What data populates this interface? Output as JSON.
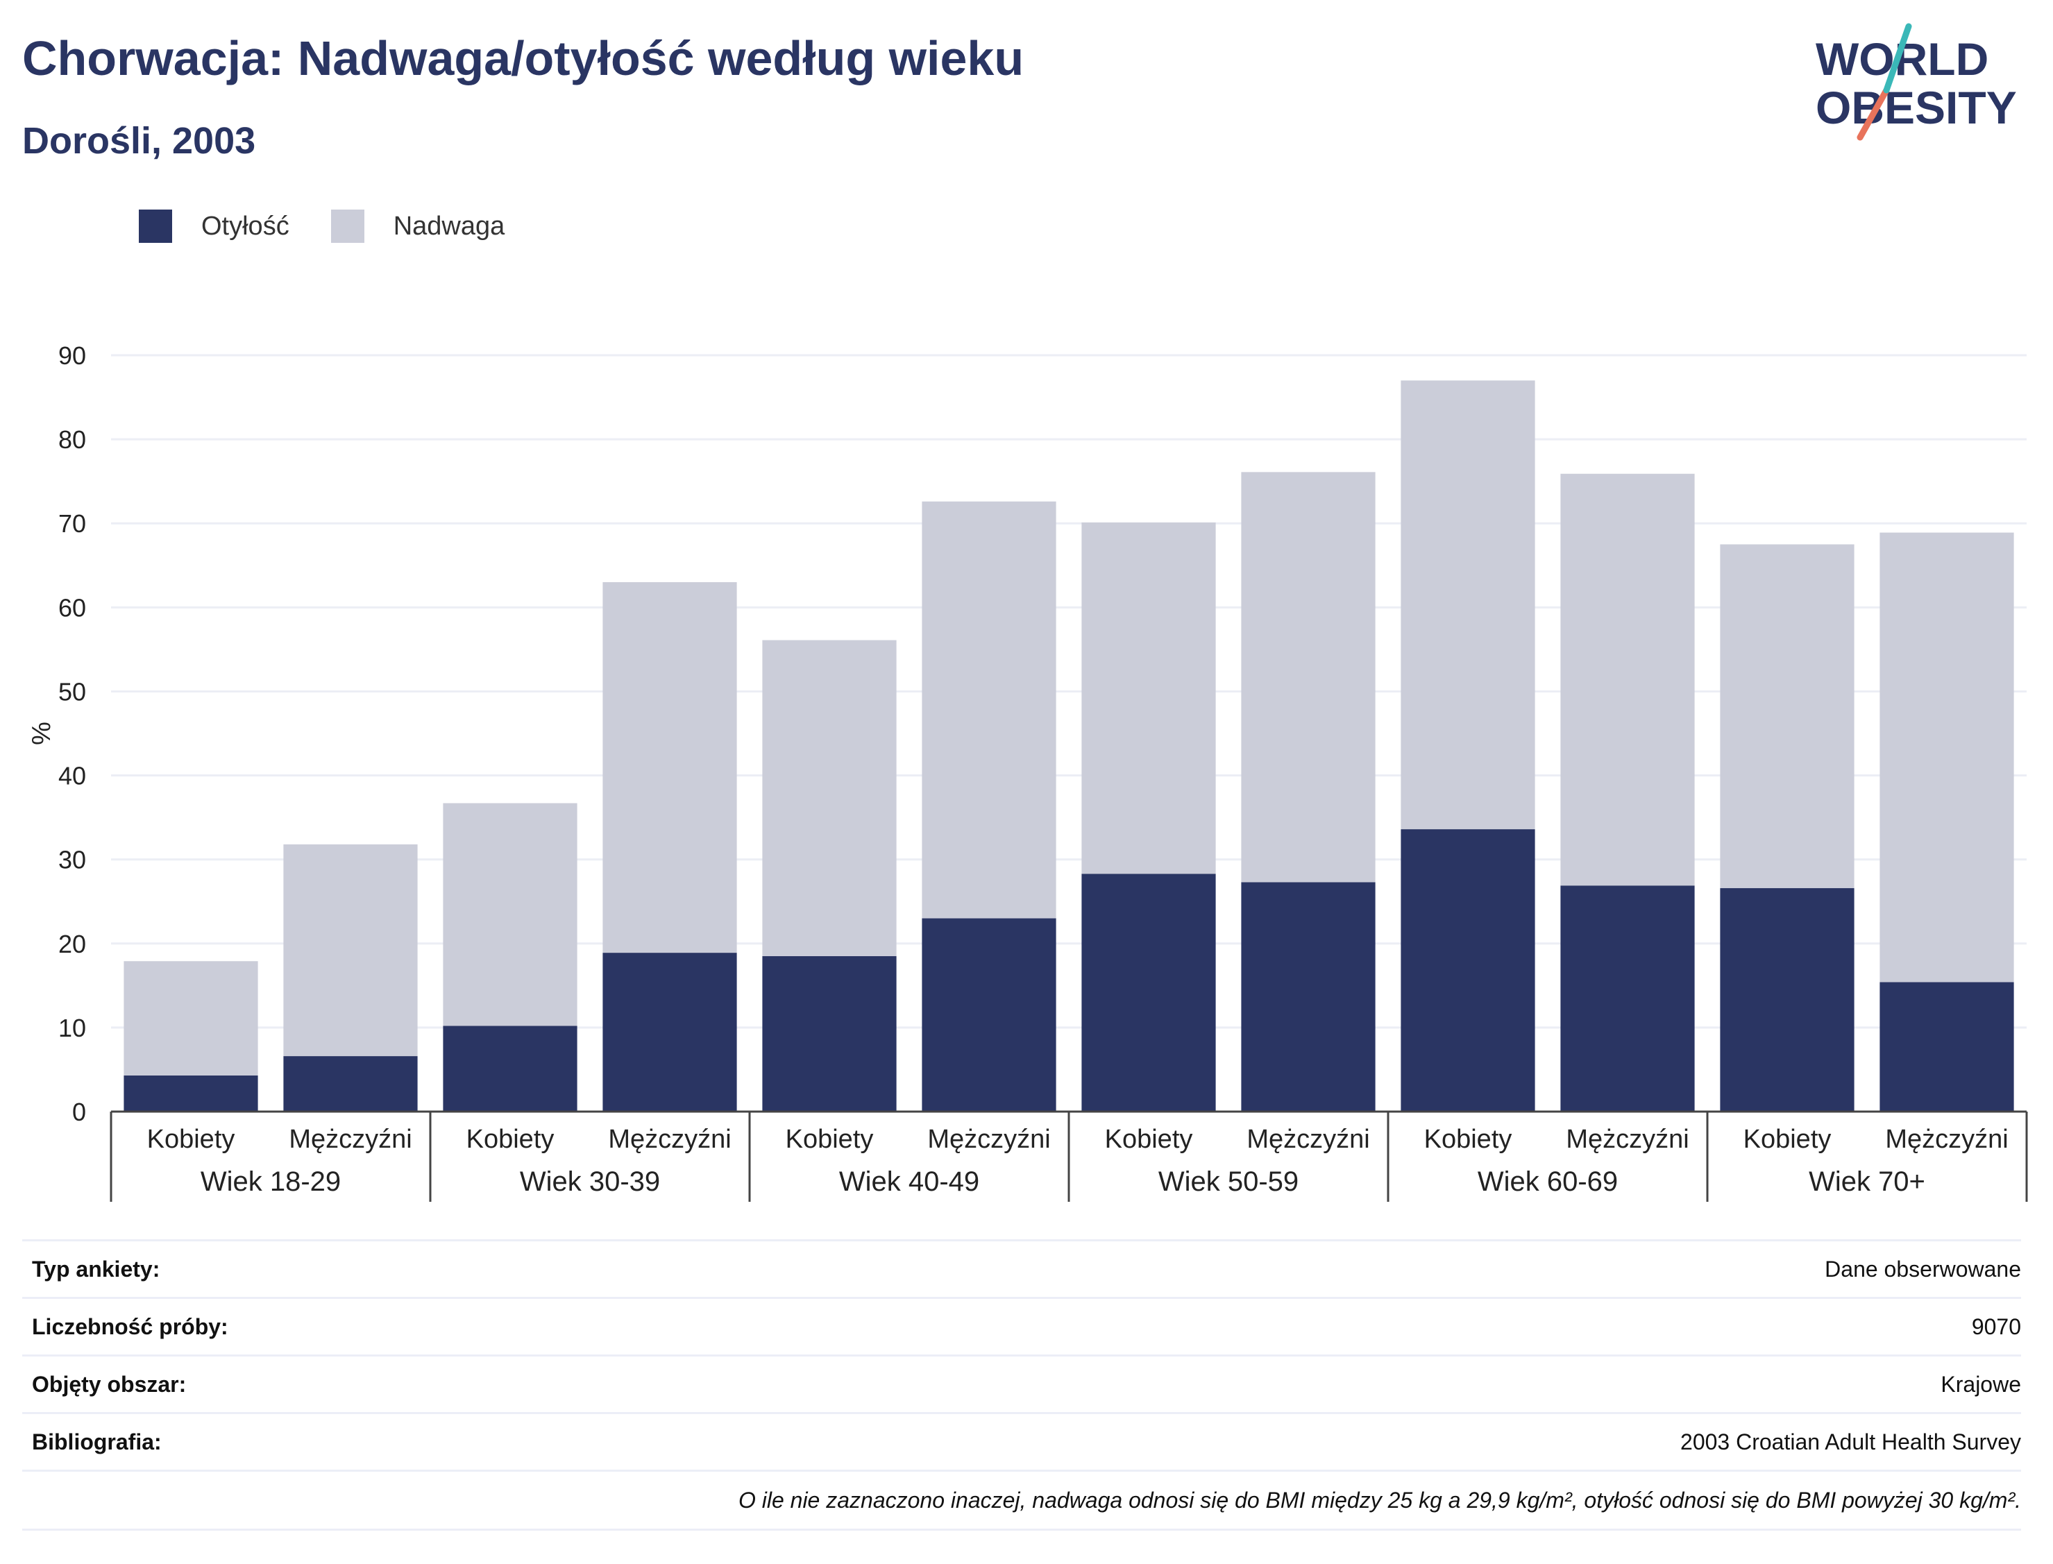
{
  "header": {
    "title": "Chorwacja: Nadwaga/otyłość według wieku",
    "subtitle": "Dorośli, 2003",
    "logo_text_line1": "WORLD",
    "logo_text_line2": "OBESITY"
  },
  "legend": {
    "items": [
      {
        "label": "Otyłość",
        "color": "#2a3563"
      },
      {
        "label": "Nadwaga",
        "color": "#cbcdd9"
      }
    ]
  },
  "chart_data": {
    "type": "bar",
    "stacked": true,
    "ylabel": "%",
    "ylim": [
      0,
      90
    ],
    "yticks": [
      0,
      10,
      20,
      30,
      40,
      50,
      60,
      70,
      80,
      90
    ],
    "grid": true,
    "legend_position": "top-left",
    "groups": [
      "Wiek 18-29",
      "Wiek 30-39",
      "Wiek 40-49",
      "Wiek 50-59",
      "Wiek 60-69",
      "Wiek 70+"
    ],
    "categories": [
      "Kobiety",
      "Mężczyźni",
      "Kobiety",
      "Mężczyźni",
      "Kobiety",
      "Mężczyźni",
      "Kobiety",
      "Mężczyźni",
      "Kobiety",
      "Mężczyźni",
      "Kobiety",
      "Mężczyźni"
    ],
    "series": [
      {
        "name": "Otyłość",
        "color": "#2a3563",
        "values": [
          4.3,
          6.6,
          10.2,
          18.9,
          18.5,
          23.0,
          28.3,
          27.3,
          33.6,
          26.9,
          26.6,
          15.4
        ]
      },
      {
        "name": "Nadwaga",
        "color": "#cbcdd9",
        "values": [
          13.6,
          25.2,
          26.5,
          44.1,
          37.6,
          49.6,
          41.8,
          48.8,
          53.4,
          49.0,
          40.9,
          53.5
        ]
      }
    ]
  },
  "info": {
    "rows": [
      {
        "key": "Typ ankiety:",
        "value": "Dane obserwowane"
      },
      {
        "key": "Liczebność próby:",
        "value": "9070"
      },
      {
        "key": "Objęty obszar:",
        "value": "Krajowe"
      },
      {
        "key": "Bibliografia:",
        "value": "2003 Croatian Adult Health Survey"
      }
    ],
    "note": "O ile nie zaznaczono inaczej, nadwaga odnosi się do BMI między 25 kg a 29,9 kg/m², otyłość odnosi się do BMI powyżej 30 kg/m²."
  }
}
